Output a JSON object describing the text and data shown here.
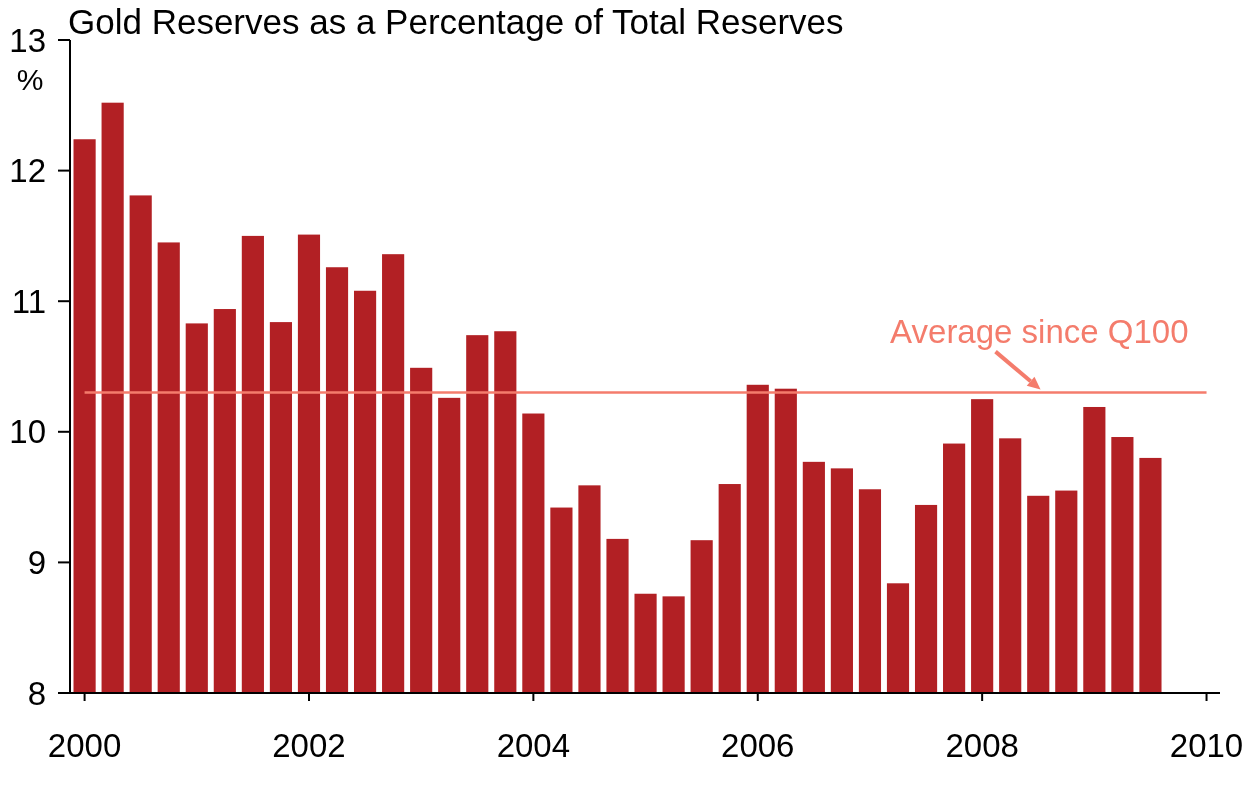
{
  "chart_data": {
    "type": "bar",
    "title": "Gold Reserves as a Percentage of Total Reserves",
    "ylabel": "%",
    "x": [
      2000,
      2000.25,
      2000.5,
      2000.75,
      2001,
      2001.25,
      2001.5,
      2001.75,
      2002,
      2002.25,
      2002.5,
      2002.75,
      2003,
      2003.25,
      2003.5,
      2003.75,
      2004,
      2004.25,
      2004.5,
      2004.75,
      2005,
      2005.25,
      2005.5,
      2005.75,
      2006,
      2006.25,
      2006.5,
      2006.75,
      2007,
      2007.25,
      2007.5,
      2007.75,
      2008,
      2008.25,
      2008.5,
      2008.75,
      2009,
      2009.25,
      2009.5
    ],
    "values": [
      12.24,
      12.52,
      11.81,
      11.45,
      10.83,
      10.94,
      11.5,
      10.84,
      11.51,
      11.26,
      11.08,
      11.36,
      10.49,
      10.26,
      10.74,
      10.77,
      10.14,
      9.42,
      9.59,
      9.18,
      8.76,
      8.74,
      9.17,
      9.6,
      10.36,
      10.33,
      9.77,
      9.72,
      9.56,
      8.84,
      9.44,
      9.91,
      10.25,
      9.95,
      9.51,
      9.55,
      10.19,
      9.96,
      9.8
    ],
    "color": "#b22024",
    "xlim": [
      1999.87,
      2010.12
    ],
    "xticks": [
      2000,
      2002,
      2004,
      2006,
      2008,
      2010
    ],
    "ylim": [
      8,
      13
    ],
    "yticks": [
      8,
      9,
      10,
      11,
      12,
      13
    ],
    "ref_lines": [
      {
        "axis": "y",
        "value": 10.3,
        "label": "Average since Q100",
        "color": "#f47c6c"
      }
    ]
  }
}
